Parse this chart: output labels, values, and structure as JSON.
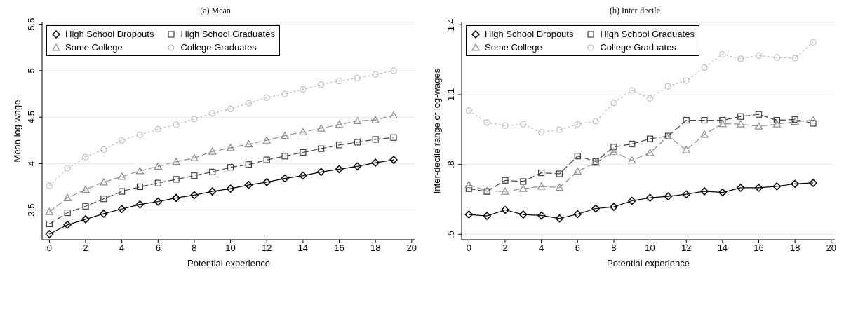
{
  "chart_data": [
    {
      "type": "line",
      "title": "(a) Mean",
      "xlabel": "Potential experience",
      "ylabel": "Mean log-wage",
      "x": [
        0,
        1,
        2,
        3,
        4,
        5,
        6,
        7,
        8,
        9,
        10,
        11,
        12,
        13,
        14,
        15,
        16,
        17,
        18,
        19
      ],
      "series": [
        {
          "name": "High School Dropouts",
          "color": "#000000",
          "marker": "diamond",
          "line_style": "solid",
          "values": [
            3.24,
            3.34,
            3.4,
            3.46,
            3.51,
            3.56,
            3.59,
            3.63,
            3.66,
            3.7,
            3.73,
            3.77,
            3.8,
            3.84,
            3.87,
            3.91,
            3.94,
            3.97,
            4.01,
            4.04
          ]
        },
        {
          "name": "High School Graduates",
          "color": "#404040",
          "marker": "square",
          "line_style": "dashed",
          "values": [
            3.35,
            3.47,
            3.54,
            3.62,
            3.7,
            3.75,
            3.79,
            3.83,
            3.87,
            3.91,
            3.96,
            3.99,
            4.04,
            4.08,
            4.12,
            4.16,
            4.2,
            4.23,
            4.26,
            4.28
          ]
        },
        {
          "name": "Some College",
          "color": "#8c8c8c",
          "marker": "triangle",
          "line_style": "dashed",
          "values": [
            3.48,
            3.63,
            3.72,
            3.8,
            3.86,
            3.92,
            3.97,
            4.02,
            4.06,
            4.13,
            4.17,
            4.21,
            4.25,
            4.3,
            4.34,
            4.38,
            4.42,
            4.46,
            4.47,
            4.52
          ]
        },
        {
          "name": "College Graduates",
          "color": "#bdbdbd",
          "marker": "circle",
          "line_style": "dotted",
          "values": [
            3.76,
            3.95,
            4.07,
            4.15,
            4.25,
            4.31,
            4.37,
            4.42,
            4.48,
            4.54,
            4.59,
            4.65,
            4.71,
            4.75,
            4.8,
            4.85,
            4.89,
            4.92,
            4.96,
            5.0
          ]
        }
      ],
      "xlim": [
        -0.4,
        20.2
      ],
      "xticks": [
        0,
        2,
        4,
        6,
        8,
        10,
        12,
        14,
        16,
        18,
        20
      ],
      "ylim": [
        3.18,
        5.52
      ],
      "yticks": [
        3.5,
        4,
        4.5,
        5,
        5.5
      ],
      "grid": "y",
      "legend": "top left"
    },
    {
      "type": "line",
      "title": "(b) Inter-decile",
      "xlabel": "Potential experience",
      "ylabel": "Inter-decile range of log-wages",
      "x": [
        0,
        1,
        2,
        3,
        4,
        5,
        6,
        7,
        8,
        9,
        10,
        11,
        12,
        13,
        14,
        15,
        16,
        17,
        18,
        19
      ],
      "series": [
        {
          "name": "High School Dropouts",
          "color": "#000000",
          "marker": "diamond",
          "line_style": "solid",
          "values": [
            0.585,
            0.579,
            0.605,
            0.585,
            0.581,
            0.568,
            0.587,
            0.611,
            0.618,
            0.644,
            0.657,
            0.663,
            0.672,
            0.685,
            0.68,
            0.7,
            0.7,
            0.706,
            0.717,
            0.721
          ]
        },
        {
          "name": "High School Graduates",
          "color": "#404040",
          "marker": "square",
          "line_style": "dashed",
          "values": [
            0.696,
            0.684,
            0.732,
            0.727,
            0.764,
            0.76,
            0.836,
            0.813,
            0.875,
            0.888,
            0.91,
            0.922,
            0.99,
            0.99,
            0.99,
            1.006,
            1.015,
            0.99,
            0.993,
            0.977
          ]
        },
        {
          "name": "Some College",
          "color": "#8c8c8c",
          "marker": "triangle",
          "line_style": "dashed",
          "values": [
            0.713,
            0.687,
            0.684,
            0.696,
            0.706,
            0.701,
            0.77,
            0.808,
            0.854,
            0.818,
            0.85,
            0.922,
            0.862,
            0.929,
            0.975,
            0.973,
            0.964,
            0.973,
            0.984,
            0.99
          ]
        },
        {
          "name": "College Graduates",
          "color": "#bdbdbd",
          "marker": "circle",
          "line_style": "dotted",
          "values": [
            1.032,
            0.98,
            0.967,
            0.973,
            0.938,
            0.949,
            0.973,
            0.986,
            1.065,
            1.118,
            1.084,
            1.136,
            1.16,
            1.216,
            1.273,
            1.254,
            1.268,
            1.259,
            1.257,
            1.325
          ]
        }
      ],
      "xlim": [
        -0.4,
        20.2
      ],
      "xticks": [
        0,
        2,
        4,
        6,
        8,
        10,
        12,
        14,
        16,
        18,
        20
      ],
      "ylim": [
        0.477,
        1.41
      ],
      "yticks": [
        {
          "value": 0.5,
          "label": ".5"
        },
        {
          "value": 0.8,
          "label": ".8"
        },
        1.1,
        1.4
      ],
      "grid": "y",
      "legend": "top left"
    }
  ]
}
